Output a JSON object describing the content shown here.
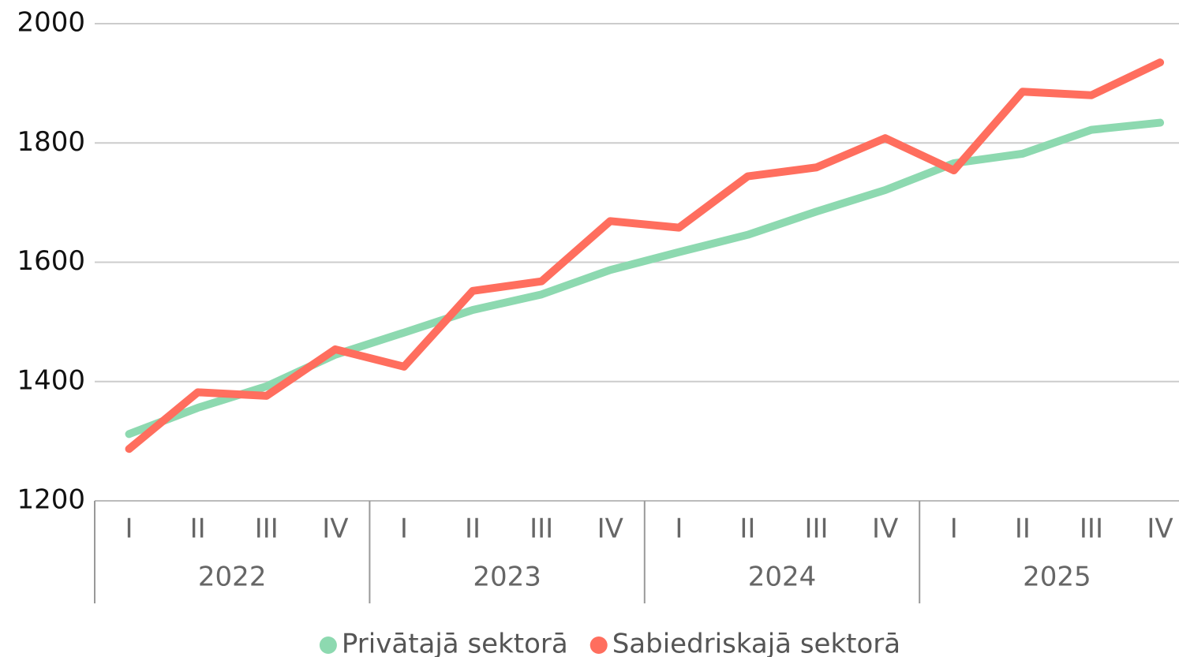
{
  "chart_data": {
    "type": "line",
    "categories": [
      "I",
      "II",
      "III",
      "IV",
      "I",
      "II",
      "III",
      "IV",
      "I",
      "II",
      "III",
      "IV",
      "I",
      "II",
      "III",
      "IV"
    ],
    "years": [
      "2022",
      "2023",
      "2024",
      "2025"
    ],
    "series": [
      {
        "name": "Privātajā sektorā",
        "color": "#8dd9b0",
        "values": [
          1312,
          1356,
          1392,
          1445,
          1482,
          1520,
          1546,
          1587,
          1617,
          1646,
          1685,
          1721,
          1766,
          1782,
          1822,
          1834
        ]
      },
      {
        "name": "Sabiedriskajā sektorā",
        "color": "#ff6e5e",
        "values": [
          1287,
          1382,
          1376,
          1454,
          1425,
          1552,
          1568,
          1669,
          1658,
          1744,
          1759,
          1808,
          1754,
          1886,
          1880,
          1935
        ]
      }
    ],
    "ylim": [
      1200,
      2000
    ],
    "yticks": [
      1200,
      1400,
      1600,
      1800,
      2000
    ],
    "grid": true,
    "legend": "bottom"
  }
}
